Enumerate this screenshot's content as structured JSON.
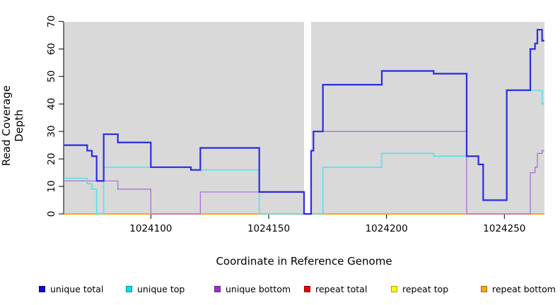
{
  "figure": {
    "background": "#ffffff",
    "panel_background": "#d9d9d9",
    "axis_color": "#000000"
  },
  "chart_data": {
    "type": "line",
    "style": "step-after",
    "title": "",
    "xlabel": "Coordinate in Reference Genome",
    "ylabel": "Read Coverage Depth",
    "xlim": [
      1024063,
      1024267
    ],
    "ylim": [
      0,
      70
    ],
    "x_ticks": [
      1024100,
      1024150,
      1024200,
      1024250
    ],
    "y_ticks": [
      0,
      10,
      20,
      30,
      40,
      50,
      60,
      70
    ],
    "grid": false,
    "legend_position": "bottom",
    "gap_band": {
      "from": 1024165,
      "to": 1024168,
      "color": "#ffffff"
    },
    "series": [
      {
        "id": "repeat_total",
        "label": "repeat total",
        "color": "#EE0000",
        "line_color": "#E02020",
        "line_width": 1.4,
        "segments": [
          [
            [
              1024063,
              0
            ],
            [
              1024165,
              0
            ]
          ],
          [
            [
              1024168,
              0
            ],
            [
              1024267,
              0
            ]
          ]
        ]
      },
      {
        "id": "repeat_top",
        "label": "repeat top",
        "color": "#FFFF00",
        "line_color": "#F5F52A",
        "line_width": 1.4,
        "segments": [
          [
            [
              1024063,
              0
            ],
            [
              1024165,
              0
            ]
          ],
          [
            [
              1024168,
              0
            ],
            [
              1024267,
              0
            ]
          ]
        ]
      },
      {
        "id": "repeat_bottom",
        "label": "repeat bottom",
        "color": "#FFA412",
        "line_color": "#FFA41C",
        "line_width": 2,
        "segments": [
          [
            [
              1024063,
              0
            ],
            [
              1024165,
              0
            ]
          ],
          [
            [
              1024168,
              0
            ],
            [
              1024267,
              0
            ]
          ]
        ]
      },
      {
        "id": "unique_bottom",
        "label": "unique bottom",
        "color": "#9932CC",
        "line_color": "#AD6FD9",
        "line_width": 1.3,
        "segments": [
          [
            [
              1024063,
              12
            ],
            [
              1024086,
              9
            ],
            [
              1024100,
              0
            ],
            [
              1024121,
              8
            ],
            [
              1024165,
              0
            ],
            [
              1024168,
              23
            ],
            [
              1024169,
              30
            ],
            [
              1024234,
              0
            ],
            [
              1024261,
              15
            ],
            [
              1024263,
              17
            ],
            [
              1024264,
              22
            ],
            [
              1024266,
              23
            ],
            [
              1024267,
              23
            ]
          ]
        ]
      },
      {
        "id": "unique_top",
        "label": "unique top",
        "color": "#00E0EE",
        "line_color": "#52E2E8",
        "line_width": 1.6,
        "segments": [
          [
            [
              1024063,
              13
            ],
            [
              1024073,
              11
            ],
            [
              1024075,
              9
            ],
            [
              1024077,
              0
            ],
            [
              1024080,
              17
            ],
            [
              1024117,
              16
            ],
            [
              1024146,
              0
            ],
            [
              1024165,
              0
            ]
          ],
          [
            [
              1024168,
              0
            ],
            [
              1024173,
              17
            ],
            [
              1024198,
              22
            ],
            [
              1024220,
              21
            ],
            [
              1024239,
              18
            ],
            [
              1024241,
              5
            ],
            [
              1024251,
              45
            ],
            [
              1024266,
              40
            ],
            [
              1024267,
              40
            ]
          ]
        ]
      },
      {
        "id": "unique_total",
        "label": "unique total",
        "color": "#0C0CCF",
        "line_color": "#2B2BE3",
        "line_width": 2.2,
        "segments": [
          [
            [
              1024063,
              25
            ],
            [
              1024073,
              23
            ],
            [
              1024075,
              21
            ],
            [
              1024077,
              12
            ],
            [
              1024080,
              29
            ],
            [
              1024086,
              26
            ],
            [
              1024100,
              17
            ],
            [
              1024117,
              16
            ],
            [
              1024121,
              24
            ],
            [
              1024146,
              8
            ],
            [
              1024165,
              0
            ],
            [
              1024168,
              23
            ],
            [
              1024169,
              30
            ],
            [
              1024173,
              47
            ],
            [
              1024198,
              52
            ],
            [
              1024220,
              51
            ],
            [
              1024234,
              21
            ],
            [
              1024239,
              18
            ],
            [
              1024241,
              5
            ],
            [
              1024251,
              45
            ],
            [
              1024261,
              60
            ],
            [
              1024263,
              62
            ],
            [
              1024264,
              67
            ],
            [
              1024266,
              63
            ],
            [
              1024267,
              63
            ]
          ]
        ]
      }
    ],
    "legend_order": [
      "unique_total",
      "unique_top",
      "unique_bottom",
      "repeat_total",
      "repeat_top",
      "repeat_bottom"
    ]
  }
}
